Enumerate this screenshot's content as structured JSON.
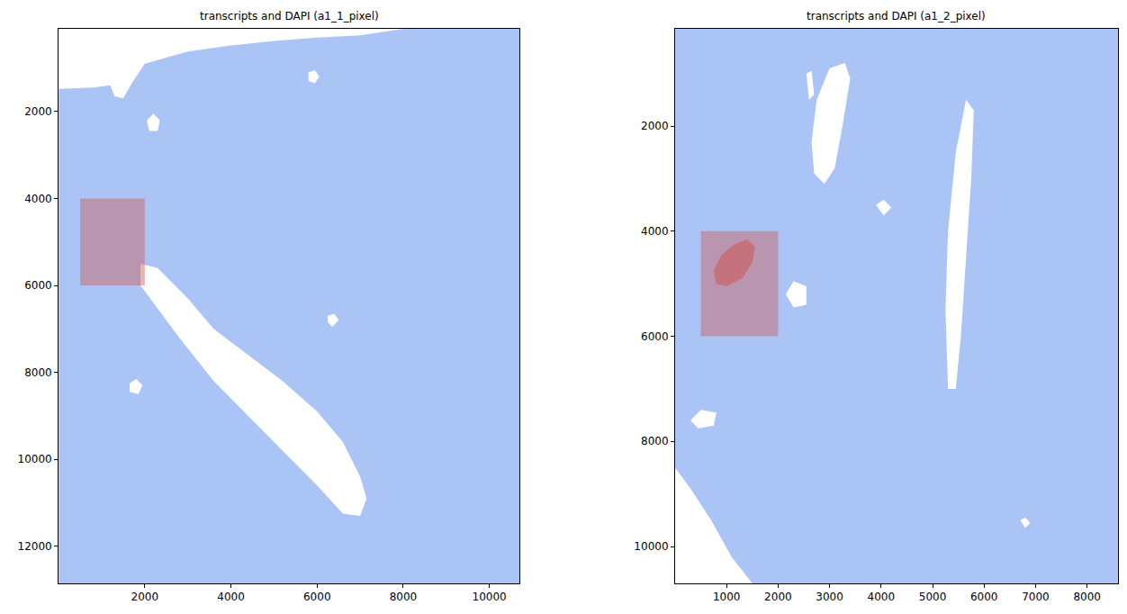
{
  "chart_data": [
    {
      "type": "scatter",
      "title": "transcripts and DAPI (a1_1_pixel)",
      "xlim": [
        0,
        10700
      ],
      "ylim": [
        12850,
        100
      ],
      "xticks": [
        2000,
        4000,
        6000,
        8000,
        10000
      ],
      "yticks": [
        2000,
        4000,
        6000,
        8000,
        10000,
        12000
      ],
      "color": "#6495ed",
      "tissue": [
        [
          0,
          12850
        ],
        [
          0,
          1480
        ],
        [
          800,
          1450
        ],
        [
          1200,
          1400
        ],
        [
          1300,
          1650
        ],
        [
          1500,
          1700
        ],
        [
          1700,
          1350
        ],
        [
          2000,
          900
        ],
        [
          3000,
          620
        ],
        [
          4000,
          480
        ],
        [
          5000,
          380
        ],
        [
          6000,
          300
        ],
        [
          7000,
          250
        ],
        [
          8000,
          100
        ],
        [
          10700,
          100
        ],
        [
          10700,
          12850
        ]
      ],
      "holes": [
        [
          [
            1900,
            5500
          ],
          [
            2300,
            5600
          ],
          [
            3000,
            6300
          ],
          [
            3600,
            7000
          ],
          [
            4400,
            7600
          ],
          [
            5200,
            8200
          ],
          [
            6000,
            8900
          ],
          [
            6600,
            9600
          ],
          [
            7000,
            10400
          ],
          [
            7150,
            10900
          ],
          [
            7000,
            11300
          ],
          [
            6600,
            11250
          ],
          [
            6000,
            10600
          ],
          [
            5300,
            9900
          ],
          [
            4500,
            9100
          ],
          [
            3600,
            8200
          ],
          [
            2800,
            7200
          ],
          [
            2200,
            6400
          ],
          [
            1900,
            6000
          ]
        ],
        [
          [
            2050,
            2200
          ],
          [
            2200,
            2050
          ],
          [
            2350,
            2200
          ],
          [
            2300,
            2450
          ],
          [
            2100,
            2450
          ]
        ],
        [
          [
            1650,
            8250
          ],
          [
            1800,
            8150
          ],
          [
            1950,
            8300
          ],
          [
            1850,
            8500
          ],
          [
            1650,
            8450
          ]
        ],
        [
          [
            5800,
            1100
          ],
          [
            5950,
            1050
          ],
          [
            6050,
            1200
          ],
          [
            5950,
            1350
          ],
          [
            5800,
            1300
          ]
        ],
        [
          [
            6250,
            6700
          ],
          [
            6400,
            6650
          ],
          [
            6500,
            6800
          ],
          [
            6350,
            6950
          ],
          [
            6250,
            6850
          ]
        ]
      ],
      "highlight": {
        "x": [
          500,
          2000
        ],
        "y": [
          4000,
          6000
        ],
        "color": "#cd5c5c"
      }
    },
    {
      "type": "scatter",
      "title": "transcripts and DAPI (a1_2_pixel)",
      "xlim": [
        0,
        8600
      ],
      "ylim": [
        10700,
        150
      ],
      "xticks": [
        1000,
        2000,
        3000,
        4000,
        5000,
        6000,
        7000,
        8000
      ],
      "yticks": [
        2000,
        4000,
        6000,
        8000,
        10000
      ],
      "color": "#6495ed",
      "tissue": [
        [
          0,
          150
        ],
        [
          8600,
          150
        ],
        [
          8600,
          10700
        ],
        [
          1500,
          10700
        ],
        [
          1100,
          10200
        ],
        [
          700,
          9500
        ],
        [
          300,
          8900
        ],
        [
          0,
          8500
        ]
      ],
      "holes": [
        [
          [
            2750,
            1500
          ],
          [
            3000,
            900
          ],
          [
            3300,
            800
          ],
          [
            3400,
            1100
          ],
          [
            3250,
            2000
          ],
          [
            3100,
            2800
          ],
          [
            2900,
            3100
          ],
          [
            2700,
            2900
          ],
          [
            2650,
            2300
          ]
        ],
        [
          [
            5300,
            7000
          ],
          [
            5250,
            5500
          ],
          [
            5300,
            4000
          ],
          [
            5450,
            2500
          ],
          [
            5650,
            1500
          ],
          [
            5800,
            1700
          ],
          [
            5750,
            3000
          ],
          [
            5650,
            4500
          ],
          [
            5550,
            6000
          ],
          [
            5450,
            7000
          ]
        ],
        [
          [
            2150,
            5200
          ],
          [
            2300,
            4950
          ],
          [
            2550,
            5050
          ],
          [
            2550,
            5400
          ],
          [
            2300,
            5450
          ]
        ],
        [
          [
            300,
            7600
          ],
          [
            500,
            7400
          ],
          [
            800,
            7450
          ],
          [
            750,
            7700
          ],
          [
            450,
            7750
          ]
        ],
        [
          [
            2550,
            1000
          ],
          [
            2650,
            950
          ],
          [
            2700,
            1400
          ],
          [
            2600,
            1500
          ]
        ],
        [
          [
            3900,
            3500
          ],
          [
            4050,
            3400
          ],
          [
            4200,
            3550
          ],
          [
            4050,
            3700
          ]
        ],
        [
          [
            6700,
            9500
          ],
          [
            6800,
            9450
          ],
          [
            6900,
            9550
          ],
          [
            6800,
            9650
          ]
        ]
      ],
      "highlight": {
        "x": [
          500,
          2000
        ],
        "y": [
          4000,
          6000
        ],
        "color": "#cd5c5c",
        "spot": [
          [
            800,
            5000
          ],
          [
            750,
            4750
          ],
          [
            900,
            4450
          ],
          [
            1150,
            4250
          ],
          [
            1400,
            4150
          ],
          [
            1550,
            4300
          ],
          [
            1500,
            4600
          ],
          [
            1300,
            4900
          ],
          [
            1000,
            5050
          ]
        ]
      }
    }
  ]
}
